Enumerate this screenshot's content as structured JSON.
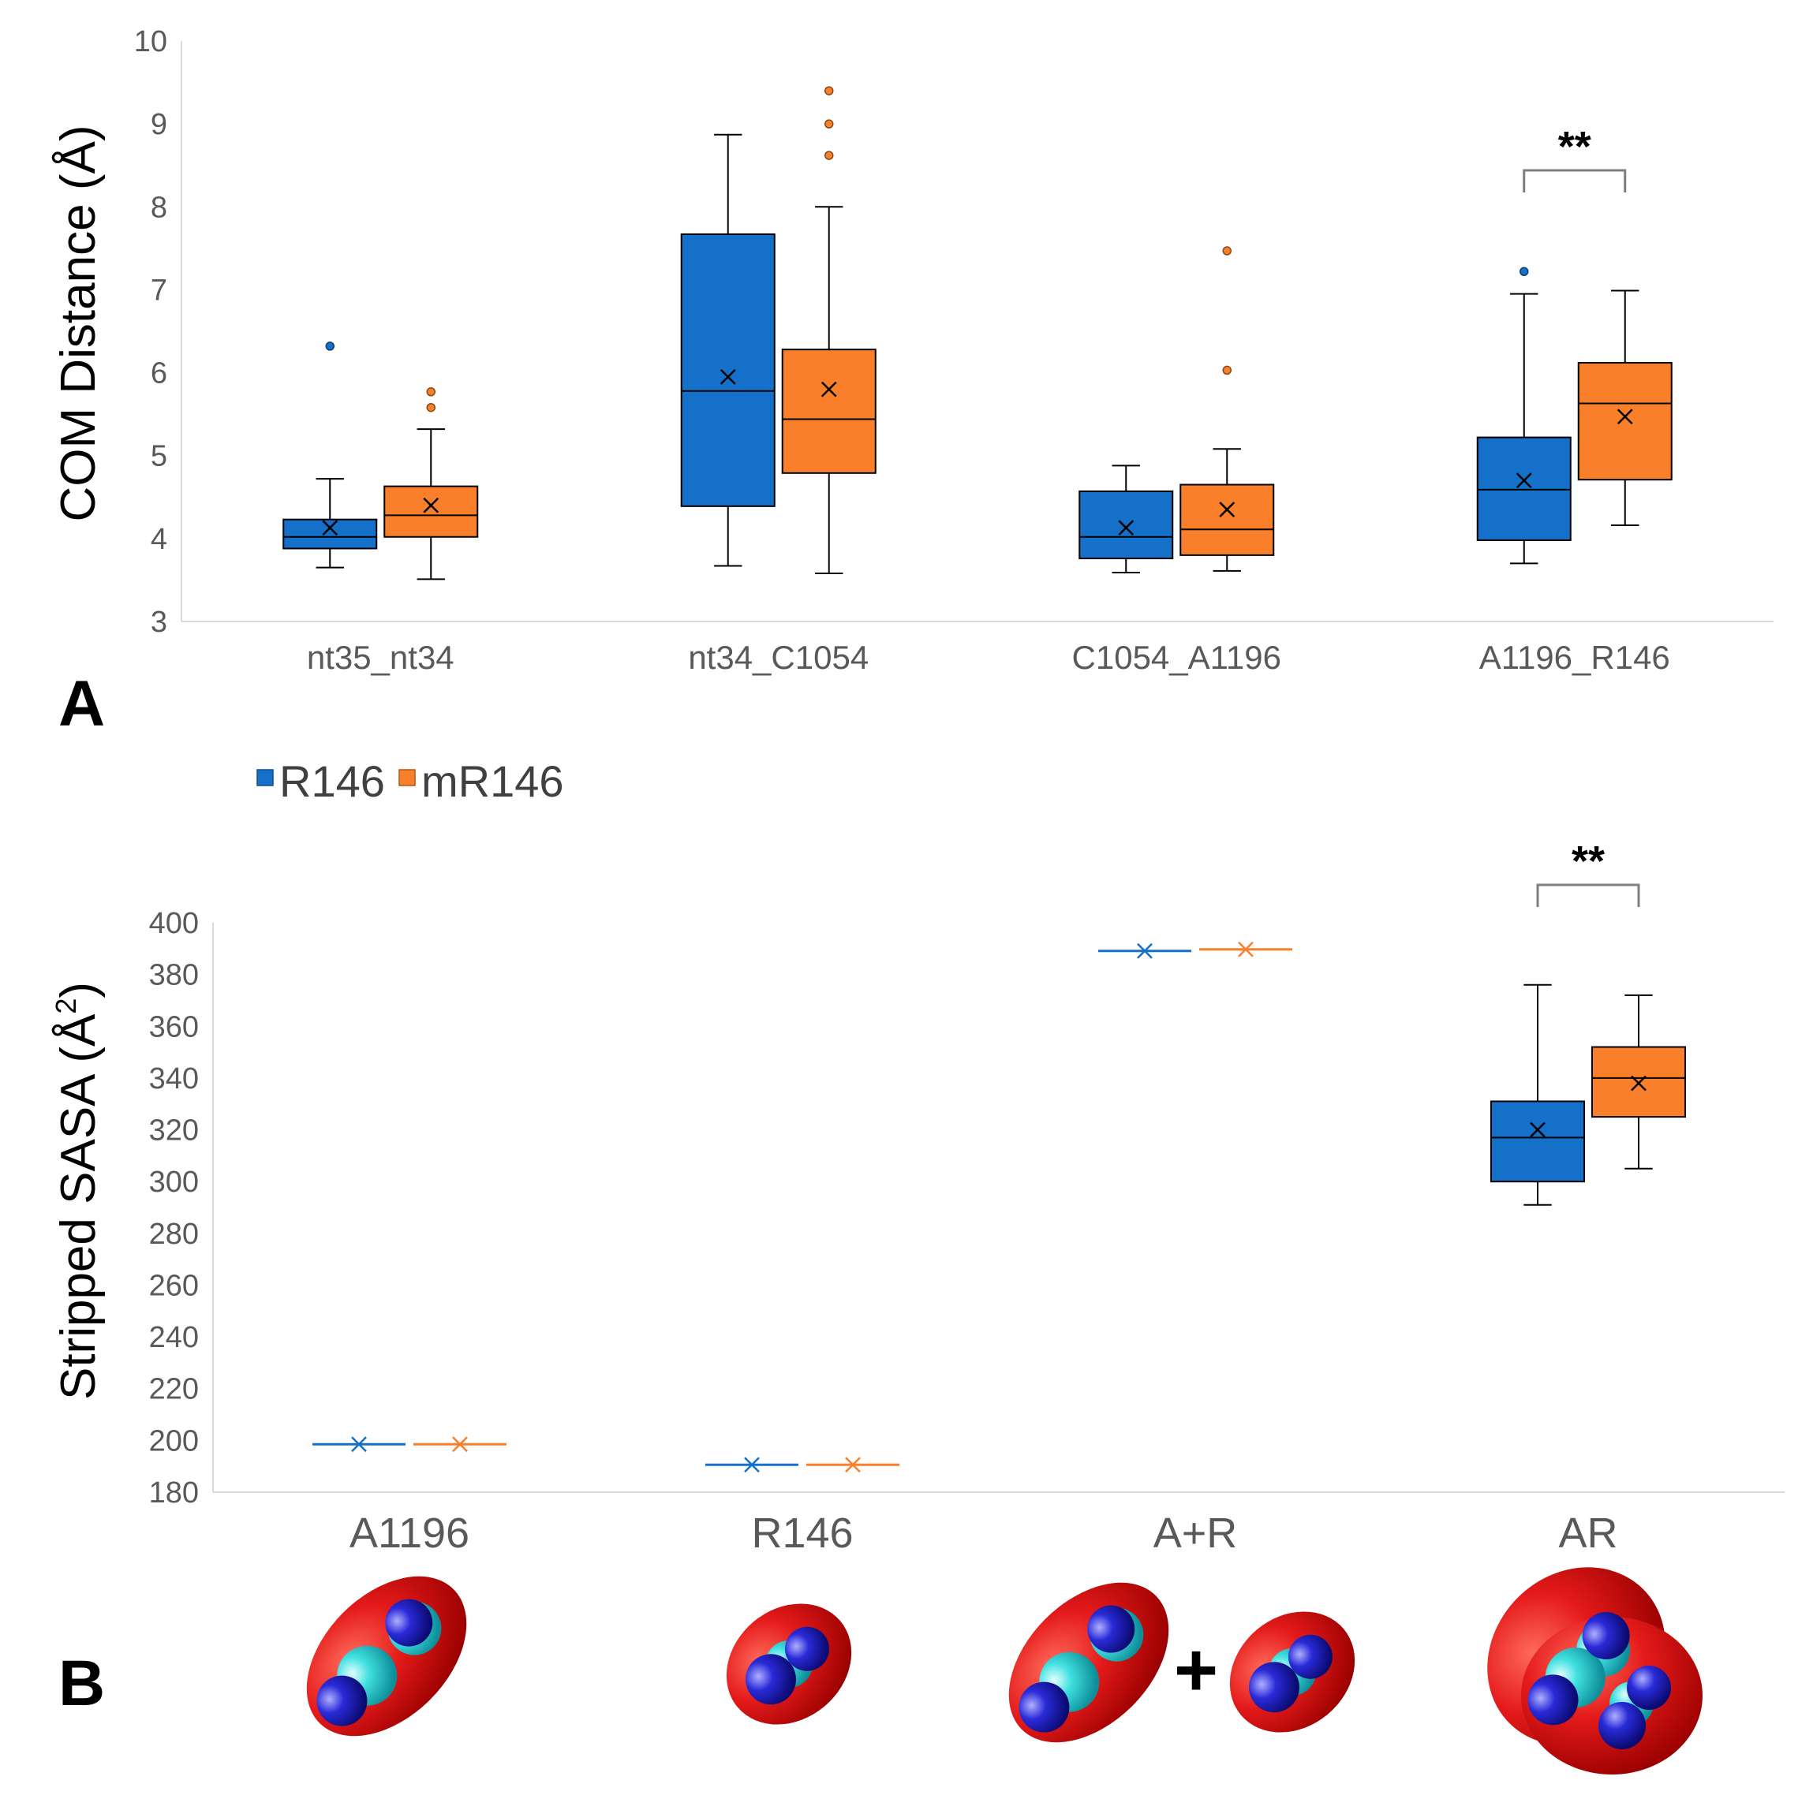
{
  "colors": {
    "R146": "#1570C9",
    "mR146": "#F97F2A",
    "axis": "#D9D9D9",
    "bracket": "#7F7F7F",
    "tick_text": "#595959",
    "molecule_shell": "#E41A1A",
    "molecule_carbon": "#40E0E0",
    "molecule_nitrogen": "#2A2AD8"
  },
  "legend": {
    "items": [
      {
        "name": "R146",
        "color": "#1570C9"
      },
      {
        "name": "mR146",
        "color": "#F97F2A"
      }
    ]
  },
  "chart_data": [
    {
      "type": "box",
      "panel_label": "A",
      "ylabel": "COM Distance (Å)",
      "ylim": [
        3,
        10
      ],
      "yticks": [
        "3",
        "4",
        "5",
        "6",
        "7",
        "8",
        "9",
        "10"
      ],
      "categories": [
        "nt35_nt34",
        "nt34_C1054",
        "C1054_A1196",
        "A1196_R146"
      ],
      "series": [
        {
          "name": "R146",
          "boxes": [
            {
              "whisker_low": 3.65,
              "q1": 3.88,
              "median": 4.02,
              "q3": 4.23,
              "whisker_high": 4.72,
              "mean": 4.13,
              "outliers": [
                6.32
              ]
            },
            {
              "whisker_low": 3.67,
              "q1": 4.39,
              "median": 5.78,
              "q3": 7.67,
              "whisker_high": 8.87,
              "mean": 5.95,
              "outliers": []
            },
            {
              "whisker_low": 3.59,
              "q1": 3.76,
              "median": 4.02,
              "q3": 4.57,
              "whisker_high": 4.88,
              "mean": 4.13,
              "outliers": []
            },
            {
              "whisker_low": 3.7,
              "q1": 3.98,
              "median": 4.59,
              "q3": 5.22,
              "whisker_high": 6.95,
              "mean": 4.7,
              "outliers": [
                7.22
              ]
            }
          ]
        },
        {
          "name": "mR146",
          "boxes": [
            {
              "whisker_low": 3.51,
              "q1": 4.02,
              "median": 4.28,
              "q3": 4.63,
              "whisker_high": 5.32,
              "mean": 4.4,
              "outliers": [
                5.58,
                5.77
              ]
            },
            {
              "whisker_low": 3.58,
              "q1": 4.79,
              "median": 5.44,
              "q3": 6.28,
              "whisker_high": 8.0,
              "mean": 5.8,
              "outliers": [
                8.62,
                9.0,
                9.4
              ]
            },
            {
              "whisker_low": 3.61,
              "q1": 3.8,
              "median": 4.11,
              "q3": 4.65,
              "whisker_high": 5.08,
              "mean": 4.35,
              "outliers": [
                6.03,
                7.47
              ]
            },
            {
              "whisker_low": 4.16,
              "q1": 4.71,
              "median": 5.63,
              "q3": 6.12,
              "whisker_high": 6.99,
              "mean": 5.47,
              "outliers": []
            }
          ]
        }
      ],
      "annotations": [
        {
          "category": "A1196_R146",
          "text": "**"
        }
      ]
    },
    {
      "type": "box",
      "panel_label": "B",
      "ylabel": "Stripped SASA (Å",
      "ylabel_superscript": "2",
      "ylabel_end": ")",
      "ylim": [
        180,
        400
      ],
      "yticks": [
        "180",
        "200",
        "220",
        "240",
        "260",
        "280",
        "300",
        "320",
        "340",
        "360",
        "380",
        "400"
      ],
      "categories": [
        "A1196",
        "R146",
        "A+R",
        "AR"
      ],
      "series": [
        {
          "name": "R146",
          "boxes": [
            {
              "whisker_low": 198.5,
              "q1": 198.5,
              "median": 198.5,
              "q3": 198.5,
              "whisker_high": 198.5,
              "mean": 198.5,
              "outliers": []
            },
            {
              "whisker_low": 190.6,
              "q1": 190.6,
              "median": 190.6,
              "q3": 190.6,
              "whisker_high": 190.6,
              "mean": 190.6,
              "outliers": []
            },
            {
              "whisker_low": 389.1,
              "q1": 389.1,
              "median": 389.1,
              "q3": 389.1,
              "whisker_high": 389.1,
              "mean": 389.1,
              "outliers": []
            },
            {
              "whisker_low": 291.0,
              "q1": 300.0,
              "median": 317.0,
              "q3": 331.0,
              "whisker_high": 376.0,
              "mean": 320.0,
              "outliers": []
            }
          ]
        },
        {
          "name": "mR146",
          "boxes": [
            {
              "whisker_low": 198.5,
              "q1": 198.5,
              "median": 198.5,
              "q3": 198.5,
              "whisker_high": 198.5,
              "mean": 198.5,
              "outliers": []
            },
            {
              "whisker_low": 190.6,
              "q1": 190.6,
              "median": 190.6,
              "q3": 190.6,
              "whisker_high": 190.6,
              "mean": 190.6,
              "outliers": []
            },
            {
              "whisker_low": 389.7,
              "q1": 389.7,
              "median": 389.7,
              "q3": 389.7,
              "whisker_high": 389.7,
              "mean": 389.7,
              "outliers": []
            },
            {
              "whisker_low": 305.0,
              "q1": 325.0,
              "median": 340.0,
              "q3": 352.0,
              "whisker_high": 372.0,
              "mean": 338.0,
              "outliers": []
            }
          ]
        }
      ],
      "annotations": [
        {
          "category": "AR",
          "text": "**"
        }
      ]
    }
  ],
  "illustrations": {
    "plus_sign": "+"
  }
}
